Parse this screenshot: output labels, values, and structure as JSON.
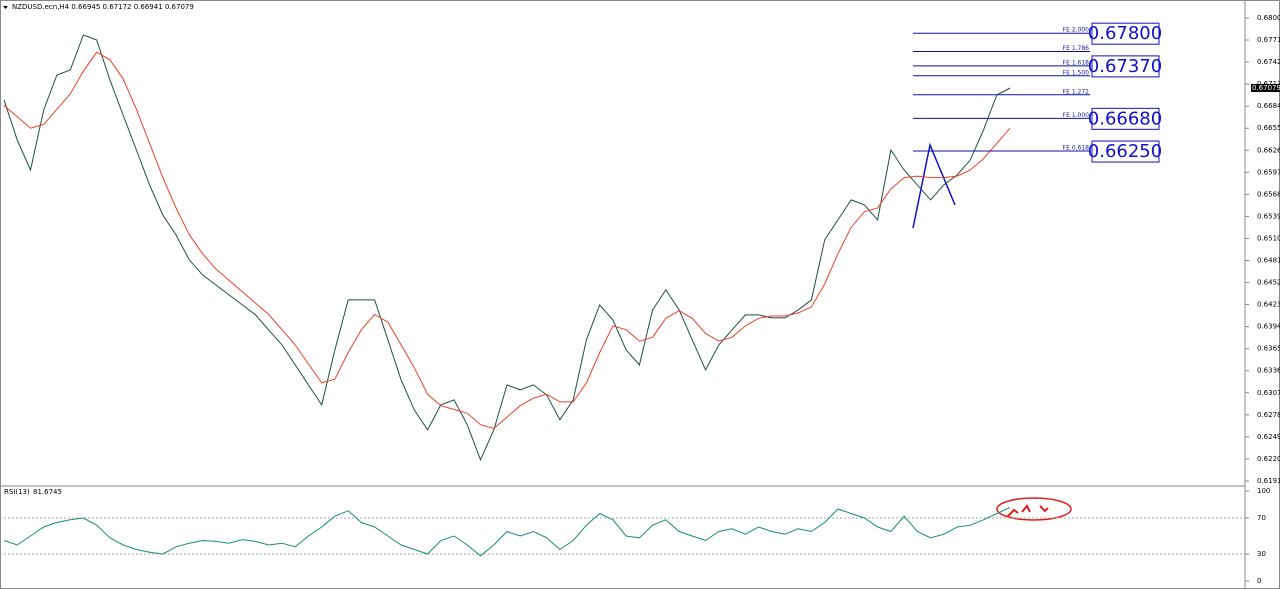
{
  "chart_data": [
    {
      "type": "line",
      "title": "NZDUSD.ecn,H4  0.66945 0.67172 0.66941 0.67079",
      "ylim": [
        0.61857,
        0.68184
      ],
      "yticks": [
        {
          "value": 0.68,
          "label": "0.68000"
        },
        {
          "value": 0.6771,
          "label": "0.67710"
        },
        {
          "value": 0.6742,
          "label": "0.67420"
        },
        {
          "value": 0.6713,
          "label": "0.67130"
        },
        {
          "value": 0.6684,
          "label": "0.66840"
        },
        {
          "value": 0.6655,
          "label": "0.66550"
        },
        {
          "value": 0.6626,
          "label": "0.66260"
        },
        {
          "value": 0.6597,
          "label": "0.65970"
        },
        {
          "value": 0.6568,
          "label": "0.65680"
        },
        {
          "value": 0.6539,
          "label": "0.65390"
        },
        {
          "value": 0.651,
          "label": "0.65100"
        },
        {
          "value": 0.6481,
          "label": "0.64810"
        },
        {
          "value": 0.6452,
          "label": "0.64520"
        },
        {
          "value": 0.6423,
          "label": "0.64230"
        },
        {
          "value": 0.6394,
          "label": "0.63940"
        },
        {
          "value": 0.6365,
          "label": "0.63650"
        },
        {
          "value": 0.6336,
          "label": "0.63360"
        },
        {
          "value": 0.6307,
          "label": "0.63070"
        },
        {
          "value": 0.6278,
          "label": "0.62780"
        },
        {
          "value": 0.6249,
          "label": "0.62490"
        },
        {
          "value": 0.622,
          "label": "0.62200"
        },
        {
          "value": 0.6191,
          "label": "0.61910"
        }
      ],
      "last_price": 0.67079,
      "series": [
        {
          "color": "#1f4f44",
          "values": [
            0.66922,
            0.66396,
            0.66001,
            0.6679,
            0.6725,
            0.67316,
            0.67776,
            0.67711,
            0.67185,
            0.66724,
            0.66264,
            0.65804,
            0.65409,
            0.65146,
            0.64818,
            0.6462,
            0.64489,
            0.64357,
            0.64226,
            0.64094,
            0.63897,
            0.637,
            0.63437,
            0.63174,
            0.62911,
            0.63634,
            0.64292,
            0.64292,
            0.64292,
            0.63766,
            0.6324,
            0.62845,
            0.62582,
            0.62911,
            0.62977,
            0.62648,
            0.62188,
            0.62582,
            0.63174,
            0.63108,
            0.63174,
            0.63042,
            0.62714,
            0.62977,
            0.63766,
            0.64226,
            0.64029,
            0.63634,
            0.63437,
            0.6416,
            0.64423,
            0.6416,
            0.63766,
            0.63371,
            0.637,
            0.63897,
            0.64094,
            0.64094,
            0.64055,
            0.64055,
            0.6416,
            0.64292,
            0.65081,
            0.65344,
            0.65607,
            0.65541,
            0.65344,
            0.66264,
            0.66001,
            0.65804,
            0.65607,
            0.65804,
            0.65935,
            0.66133,
            0.66527,
            0.66987,
            0.67079
          ]
        },
        {
          "color": "#e8432b",
          "values": [
            0.6685,
            0.667,
            0.6655,
            0.666,
            0.668,
            0.67,
            0.673,
            0.6755,
            0.6745,
            0.672,
            0.668,
            0.6635,
            0.659,
            0.655,
            0.6515,
            0.649,
            0.647,
            0.6455,
            0.644,
            0.6425,
            0.641,
            0.639,
            0.637,
            0.6345,
            0.632,
            0.6325,
            0.636,
            0.639,
            0.641,
            0.64,
            0.637,
            0.634,
            0.6305,
            0.629,
            0.6285,
            0.628,
            0.6265,
            0.626,
            0.6275,
            0.629,
            0.63,
            0.6305,
            0.6295,
            0.6295,
            0.632,
            0.636,
            0.6395,
            0.639,
            0.6375,
            0.638,
            0.6405,
            0.6415,
            0.6405,
            0.6385,
            0.6375,
            0.638,
            0.6395,
            0.6405,
            0.6408,
            0.6408,
            0.6412,
            0.642,
            0.645,
            0.649,
            0.6525,
            0.6545,
            0.655,
            0.6575,
            0.659,
            0.6592,
            0.659,
            0.659,
            0.6592,
            0.66,
            0.6615,
            0.6635,
            0.6655
          ]
        }
      ],
      "fibonacci": [
        {
          "label": "FE 2.000",
          "value": 0.678,
          "box": "0.67800"
        },
        {
          "label": "FE 1.786",
          "value": 0.6756
        },
        {
          "label": "FE 1.618",
          "value": 0.6737,
          "box": "0.67370"
        },
        {
          "label": "FE 1.500",
          "value": 0.6724
        },
        {
          "label": "FE 1.272",
          "value": 0.6699
        },
        {
          "label": "FE 1.000",
          "value": 0.6668,
          "box": "0.66680"
        },
        {
          "label": "FE 0.618",
          "value": 0.6625,
          "box": "0.66250"
        }
      ]
    },
    {
      "type": "line",
      "title": "RSI(13)",
      "ylim": [
        -6.6,
        103.3
      ],
      "yticks": [
        100,
        70,
        30,
        0
      ],
      "levels": [
        70,
        30
      ],
      "series": [
        {
          "color": "#1a8a7a",
          "values": [
            45,
            40,
            50,
            60,
            65,
            68,
            70,
            62,
            48,
            40,
            35,
            32,
            30,
            38,
            42,
            45,
            44,
            42,
            46,
            44,
            40,
            42,
            38,
            50,
            60,
            72,
            78,
            65,
            60,
            50,
            40,
            35,
            30,
            45,
            50,
            40,
            28,
            40,
            55,
            50,
            55,
            48,
            35,
            45,
            62,
            75,
            68,
            50,
            48,
            62,
            68,
            55,
            50,
            45,
            55,
            58,
            52,
            60,
            55,
            52,
            58,
            55,
            65,
            80,
            75,
            70,
            60,
            55,
            72,
            55,
            48,
            52,
            60,
            62,
            68,
            75,
            81.6745
          ]
        }
      ]
    }
  ]
}
